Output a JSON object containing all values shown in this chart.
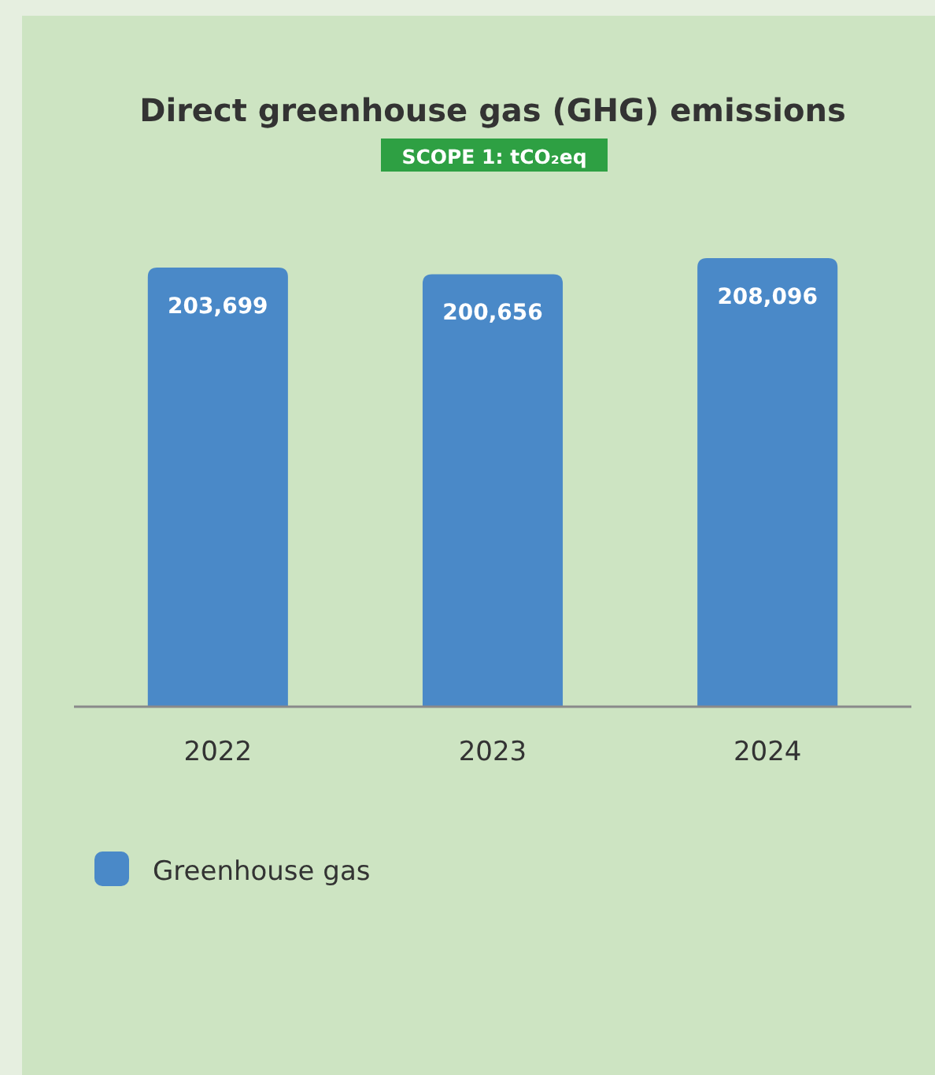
{
  "chart_data": {
    "type": "bar",
    "title": "Direct greenhouse gas (GHG) emissions",
    "subtitle": "SCOPE 1: tCO₂eq",
    "categories": [
      "2022",
      "2023",
      "2024"
    ],
    "series": [
      {
        "name": "Greenhouse gas",
        "color": "#4a89c8",
        "values": [
          203699,
          200656,
          208096
        ],
        "value_labels": [
          "203,699",
          "200,656",
          "208,096"
        ]
      }
    ],
    "legend": "bottom left",
    "grid": false
  }
}
